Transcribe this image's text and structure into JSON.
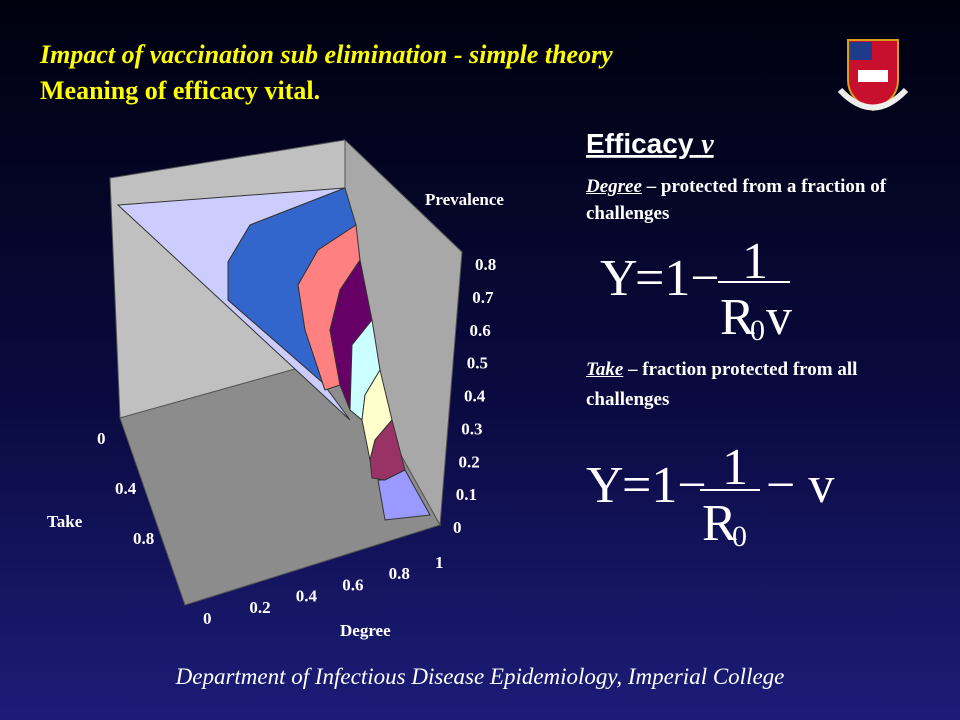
{
  "header": {
    "title": "Impact of vaccination sub elimination - simple theory",
    "subtitle": "Meaning of efficacy vital."
  },
  "chart": {
    "z_label": "Prevalence",
    "z_ticks": [
      0.8,
      0.7,
      0.6,
      0.5,
      0.4,
      0.3,
      0.2,
      0.1,
      0
    ],
    "take_label": "Take",
    "take_ticks": [
      0,
      0.4,
      0.8
    ],
    "degree_label": "Degree",
    "degree_ticks": [
      0,
      0.2,
      0.4,
      0.6,
      0.8,
      1
    ]
  },
  "panel": {
    "heading": "Efficacy",
    "heading_symbol": "v",
    "degree": {
      "term": "Degree",
      "text": " – protected from a fraction of challenges"
    },
    "equation1": {
      "lhs": "Y",
      "rhs": "=1−",
      "numerator": "1",
      "denominator": "R",
      "subscript": "0",
      "factor": "v"
    },
    "take": {
      "term": "Take",
      "text": " – fraction protected from all challenges"
    },
    "equation2": {
      "lhs": "Y",
      "rhs": "=1−",
      "numerator": "1",
      "denominator": "R",
      "subscript": "0",
      "tail": "− v"
    }
  },
  "footer": "Department of Infectious Disease Epidemiology, Imperial College"
}
